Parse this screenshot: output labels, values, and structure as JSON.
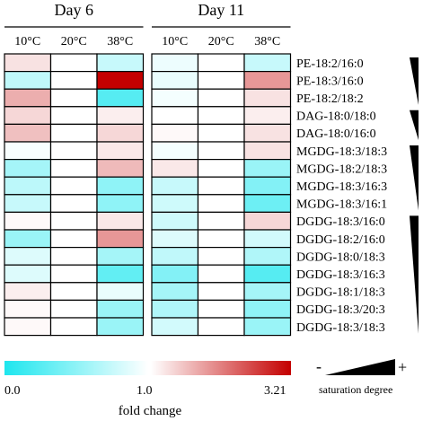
{
  "chart_data": {
    "type": "heatmap",
    "groups": [
      {
        "label": "Day 6",
        "columns": [
          "10°C",
          "20°C",
          "38°C"
        ]
      },
      {
        "label": "Day 11",
        "columns": [
          "10°C",
          "20°C",
          "38°C"
        ]
      }
    ],
    "rows": [
      "PE-18:2/16:0",
      "PE-18:3/16:0",
      "PE-18:2/18:2",
      "DAG-18:0/18:0",
      "DAG-18:0/16:0",
      "MGDG-18:3/18:3",
      "MGDG-18:2/18:3",
      "MGDG-18:3/16:3",
      "MGDG-18:3/16:1",
      "DGDG-18:3/16:0",
      "DGDG-18:2/16:0",
      "DGDG-18:0/18:3",
      "DGDG-18:3/16:3",
      "DGDG-18:1/18:3",
      "DGDG-18:3/20:3",
      "DGDG-18:3/18:3"
    ],
    "values": [
      [
        1.25,
        1.0,
        0.75,
        0.92,
        1.0,
        0.75
      ],
      [
        0.72,
        1.0,
        3.21,
        0.9,
        1.0,
        1.9
      ],
      [
        1.7,
        1.0,
        0.25,
        0.95,
        1.0,
        1.25
      ],
      [
        1.35,
        1.0,
        1.15,
        1.0,
        1.0,
        1.15
      ],
      [
        1.55,
        1.0,
        1.35,
        1.05,
        1.0,
        1.25
      ],
      [
        0.97,
        1.0,
        1.2,
        0.95,
        1.0,
        1.25
      ],
      [
        0.6,
        1.0,
        1.6,
        1.2,
        1.0,
        0.55
      ],
      [
        0.7,
        1.0,
        0.5,
        0.75,
        1.0,
        0.45
      ],
      [
        0.75,
        1.0,
        0.5,
        0.78,
        1.0,
        0.35
      ],
      [
        1.05,
        1.0,
        1.2,
        0.78,
        1.0,
        1.35
      ],
      [
        0.55,
        1.0,
        1.9,
        0.85,
        1.0,
        0.8
      ],
      [
        0.85,
        1.0,
        0.6,
        0.72,
        1.0,
        0.65
      ],
      [
        0.85,
        1.0,
        0.3,
        0.45,
        1.0,
        0.25
      ],
      [
        1.15,
        1.0,
        0.9,
        0.6,
        1.0,
        0.6
      ],
      [
        1.05,
        1.0,
        0.55,
        0.65,
        1.0,
        0.5
      ],
      [
        1.05,
        1.0,
        0.55,
        0.8,
        1.0,
        0.55
      ]
    ],
    "color_scale": {
      "min": 0.0,
      "mid": 1.0,
      "max": 3.21,
      "min_color": "#1ee6ee",
      "mid_color": "#ffffff",
      "max_color": "#c40000",
      "tick_labels": [
        "0.0",
        "1.0",
        "3.21"
      ],
      "label": "fold change"
    },
    "saturation_legend": {
      "minus": "-",
      "plus": "+",
      "label": "saturation degree"
    },
    "row_bracket_groups": [
      [
        0,
        2
      ],
      [
        3,
        4
      ],
      [
        5,
        8
      ],
      [
        9,
        15
      ]
    ]
  }
}
